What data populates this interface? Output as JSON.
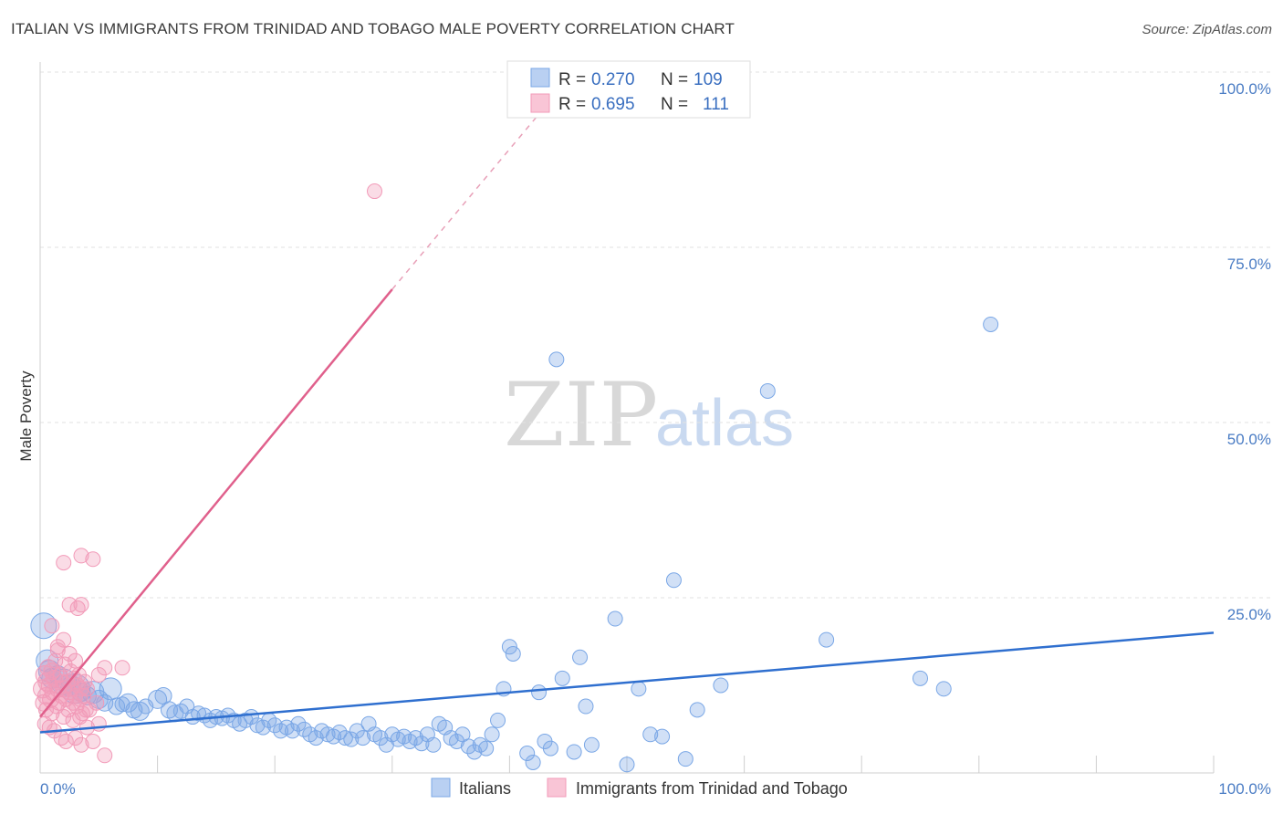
{
  "header": {
    "title": "ITALIAN VS IMMIGRANTS FROM TRINIDAD AND TOBAGO MALE POVERTY CORRELATION CHART",
    "source": "Source: ZipAtlas.com"
  },
  "watermark": {
    "zip": "ZIP",
    "atlas": "atlas"
  },
  "chart_data": {
    "type": "scatter",
    "title": "ITALIAN VS IMMIGRANTS FROM TRINIDAD AND TOBAGO MALE POVERTY CORRELATION CHART",
    "xlabel": "",
    "ylabel": "Male Poverty",
    "xlim": [
      0,
      100
    ],
    "ylim": [
      0,
      100
    ],
    "x_tick_labels": [
      "0.0%",
      "100.0%"
    ],
    "y_ticks": [
      25,
      50,
      75,
      100
    ],
    "y_tick_labels": [
      "25.0%",
      "50.0%",
      "75.0%",
      "100.0%"
    ],
    "grid": true,
    "legend": {
      "placement": "top-center",
      "rows": [
        {
          "r_label": "R =",
          "r_value": "0.270",
          "n_label": "N =",
          "n_value": "109"
        },
        {
          "r_label": "R =",
          "r_value": "0.695",
          "n_label": "N =",
          "n_value": "111"
        }
      ]
    },
    "series": [
      {
        "name": "Italians",
        "color": "#7aa7e6",
        "line_color": "#2f6fcf",
        "trend": {
          "x0": 0,
          "y0": 5.8,
          "x1": 100,
          "y1": 20.0
        },
        "points": [
          [
            0.3,
            21.0,
            14
          ],
          [
            0.6,
            16.0,
            12
          ],
          [
            0.8,
            14.5,
            12
          ],
          [
            1.0,
            13.5,
            11
          ],
          [
            1.5,
            14.0,
            10
          ],
          [
            2.0,
            13.0,
            14
          ],
          [
            2.5,
            12.5,
            12
          ],
          [
            3.0,
            12.0,
            16
          ],
          [
            3.5,
            11.5,
            10
          ],
          [
            4.0,
            11.0,
            10
          ],
          [
            4.5,
            11.5,
            12
          ],
          [
            5.0,
            10.5,
            10
          ],
          [
            5.5,
            10.0,
            9
          ],
          [
            6.0,
            12.0,
            12
          ],
          [
            6.5,
            9.5,
            9
          ],
          [
            7.0,
            9.8,
            8
          ],
          [
            7.5,
            10.0,
            10
          ],
          [
            8.0,
            9.0,
            9
          ],
          [
            8.5,
            8.8,
            10
          ],
          [
            9.0,
            9.5,
            8
          ],
          [
            10.0,
            10.5,
            10
          ],
          [
            10.5,
            11.0,
            9
          ],
          [
            11.0,
            9.0,
            9
          ],
          [
            11.5,
            8.5,
            9
          ],
          [
            12.0,
            8.8,
            8
          ],
          [
            12.5,
            9.5,
            8
          ],
          [
            13.0,
            8.0,
            8
          ],
          [
            13.5,
            8.5,
            8
          ],
          [
            14.0,
            8.2,
            8
          ],
          [
            14.5,
            7.5,
            8
          ],
          [
            15.0,
            8.0,
            8
          ],
          [
            15.5,
            7.8,
            8
          ],
          [
            16.0,
            8.2,
            8
          ],
          [
            16.5,
            7.5,
            8
          ],
          [
            17.0,
            7.0,
            8
          ],
          [
            17.5,
            7.5,
            8
          ],
          [
            18.0,
            8.0,
            8
          ],
          [
            18.5,
            6.8,
            8
          ],
          [
            19.0,
            6.5,
            8
          ],
          [
            19.5,
            7.5,
            8
          ],
          [
            20.0,
            6.8,
            8
          ],
          [
            20.5,
            6.0,
            8
          ],
          [
            21.0,
            6.5,
            8
          ],
          [
            21.5,
            6.0,
            8
          ],
          [
            22.0,
            7.0,
            8
          ],
          [
            22.5,
            6.2,
            8
          ],
          [
            23.0,
            5.5,
            8
          ],
          [
            23.5,
            5.0,
            8
          ],
          [
            24.0,
            6.0,
            8
          ],
          [
            24.5,
            5.5,
            8
          ],
          [
            25.0,
            5.2,
            8
          ],
          [
            25.5,
            5.8,
            8
          ],
          [
            26.0,
            5.0,
            8
          ],
          [
            26.5,
            4.8,
            8
          ],
          [
            27.0,
            6.0,
            8
          ],
          [
            27.5,
            5.0,
            8
          ],
          [
            28.0,
            7.0,
            8
          ],
          [
            28.5,
            5.5,
            8
          ],
          [
            29.0,
            5.0,
            8
          ],
          [
            29.5,
            4.0,
            8
          ],
          [
            30.0,
            5.5,
            8
          ],
          [
            30.5,
            4.8,
            8
          ],
          [
            31.0,
            5.2,
            8
          ],
          [
            31.5,
            4.5,
            8
          ],
          [
            32.0,
            5.0,
            8
          ],
          [
            32.5,
            4.2,
            8
          ],
          [
            33.0,
            5.5,
            8
          ],
          [
            33.5,
            4.0,
            8
          ],
          [
            34.0,
            7.0,
            8
          ],
          [
            34.5,
            6.5,
            8
          ],
          [
            35.0,
            5.0,
            8
          ],
          [
            35.5,
            4.5,
            8
          ],
          [
            36.0,
            5.5,
            8
          ],
          [
            36.5,
            3.8,
            8
          ],
          [
            37.0,
            3.0,
            8
          ],
          [
            37.5,
            4.0,
            8
          ],
          [
            38.0,
            3.5,
            8
          ],
          [
            38.5,
            5.5,
            8
          ],
          [
            39.0,
            7.5,
            8
          ],
          [
            39.5,
            12.0,
            8
          ],
          [
            40.0,
            18.0,
            8
          ],
          [
            40.3,
            17.0,
            8
          ],
          [
            41.5,
            2.8,
            8
          ],
          [
            42.0,
            1.5,
            8
          ],
          [
            42.5,
            11.5,
            8
          ],
          [
            43.0,
            4.5,
            8
          ],
          [
            43.5,
            3.5,
            8
          ],
          [
            44.0,
            59.0,
            8
          ],
          [
            44.5,
            13.5,
            8
          ],
          [
            45.5,
            3.0,
            8
          ],
          [
            46.0,
            16.5,
            8
          ],
          [
            46.5,
            9.5,
            8
          ],
          [
            47.0,
            4.0,
            8
          ],
          [
            49.0,
            22.0,
            8
          ],
          [
            50.0,
            1.2,
            8
          ],
          [
            51.0,
            12.0,
            8
          ],
          [
            52.0,
            5.5,
            8
          ],
          [
            53.0,
            5.2,
            8
          ],
          [
            54.0,
            27.5,
            8
          ],
          [
            55.0,
            2.0,
            8
          ],
          [
            56.0,
            9.0,
            8
          ],
          [
            58.0,
            12.5,
            8
          ],
          [
            62.0,
            54.5,
            8
          ],
          [
            67.0,
            19.0,
            8
          ],
          [
            75.0,
            13.5,
            8
          ],
          [
            77.0,
            12.0,
            8
          ],
          [
            81.0,
            64.0,
            8
          ]
        ]
      },
      {
        "name": "Immigrants from Trinidad and Tobago",
        "color": "#f29ab8",
        "line_color": "#e0608c",
        "trend": {
          "x0": 0,
          "y0": 8.0,
          "x1": 30,
          "y1": 69.0
        },
        "trend_dashed": {
          "x0": 30,
          "y0": 69.0,
          "x1": 43,
          "y1": 95.0
        },
        "points": [
          [
            0.2,
            12.0,
            10
          ],
          [
            0.3,
            10.0,
            9
          ],
          [
            0.4,
            14.0,
            10
          ],
          [
            0.5,
            11.0,
            9
          ],
          [
            0.5,
            9.0,
            8
          ],
          [
            0.6,
            13.0,
            10
          ],
          [
            0.7,
            15.0,
            9
          ],
          [
            0.8,
            12.5,
            9
          ],
          [
            0.9,
            10.5,
            9
          ],
          [
            1.0,
            14.5,
            9
          ],
          [
            1.0,
            8.5,
            8
          ],
          [
            1.1,
            11.5,
            9
          ],
          [
            1.2,
            13.5,
            9
          ],
          [
            1.3,
            16.0,
            8
          ],
          [
            1.4,
            9.5,
            8
          ],
          [
            1.5,
            12.0,
            9
          ],
          [
            1.5,
            17.5,
            8
          ],
          [
            1.6,
            10.0,
            8
          ],
          [
            1.7,
            14.0,
            8
          ],
          [
            1.8,
            11.0,
            8
          ],
          [
            1.9,
            13.0,
            8
          ],
          [
            2.0,
            12.0,
            9
          ],
          [
            2.0,
            8.0,
            8
          ],
          [
            2.1,
            15.5,
            8
          ],
          [
            2.2,
            10.5,
            8
          ],
          [
            2.3,
            13.0,
            8
          ],
          [
            2.4,
            9.0,
            8
          ],
          [
            2.5,
            11.5,
            8
          ],
          [
            2.6,
            14.5,
            8
          ],
          [
            2.7,
            12.0,
            8
          ],
          [
            2.8,
            10.0,
            8
          ],
          [
            2.9,
            13.5,
            8
          ],
          [
            3.0,
            11.0,
            8
          ],
          [
            3.1,
            9.5,
            8
          ],
          [
            3.2,
            12.5,
            8
          ],
          [
            3.3,
            14.0,
            8
          ],
          [
            3.4,
            10.5,
            8
          ],
          [
            3.5,
            12.0,
            8
          ],
          [
            3.6,
            8.5,
            8
          ],
          [
            3.7,
            11.0,
            8
          ],
          [
            3.8,
            13.0,
            8
          ],
          [
            3.9,
            9.0,
            8
          ],
          [
            4.0,
            12.0,
            8
          ],
          [
            1.0,
            21.0,
            8
          ],
          [
            1.5,
            18.0,
            8
          ],
          [
            2.0,
            30.0,
            8
          ],
          [
            3.5,
            31.0,
            8
          ],
          [
            4.5,
            30.5,
            8
          ],
          [
            2.5,
            24.0,
            8
          ],
          [
            3.5,
            24.0,
            8
          ],
          [
            3.2,
            23.5,
            8
          ],
          [
            2.0,
            19.0,
            8
          ],
          [
            1.2,
            6.0,
            8
          ],
          [
            1.8,
            5.0,
            8
          ],
          [
            2.2,
            4.5,
            8
          ],
          [
            3.0,
            5.0,
            8
          ],
          [
            3.5,
            4.0,
            8
          ],
          [
            4.0,
            6.5,
            8
          ],
          [
            4.5,
            4.5,
            8
          ],
          [
            5.0,
            7.0,
            8
          ],
          [
            5.5,
            2.5,
            8
          ],
          [
            2.8,
            7.5,
            8
          ],
          [
            3.4,
            8.0,
            8
          ],
          [
            4.2,
            9.0,
            8
          ],
          [
            5.0,
            14.0,
            8
          ],
          [
            5.5,
            15.0,
            8
          ],
          [
            7.0,
            15.0,
            8
          ],
          [
            4.8,
            10.0,
            8
          ],
          [
            3.0,
            16.0,
            8
          ],
          [
            2.5,
            17.0,
            8
          ],
          [
            0.4,
            7.0,
            8
          ],
          [
            0.8,
            6.5,
            8
          ],
          [
            28.5,
            83.0,
            8
          ]
        ]
      }
    ]
  },
  "bottom_legend": {
    "items": [
      {
        "label": "Italians"
      },
      {
        "label": "Immigrants from Trinidad and Tobago"
      }
    ]
  },
  "colors": {
    "blue_fill": "#7aa7e6",
    "blue_line": "#2f6fcf",
    "pink_fill": "#f29ab8",
    "pink_line": "#e0608c",
    "tick_text": "#4a7cc4"
  }
}
